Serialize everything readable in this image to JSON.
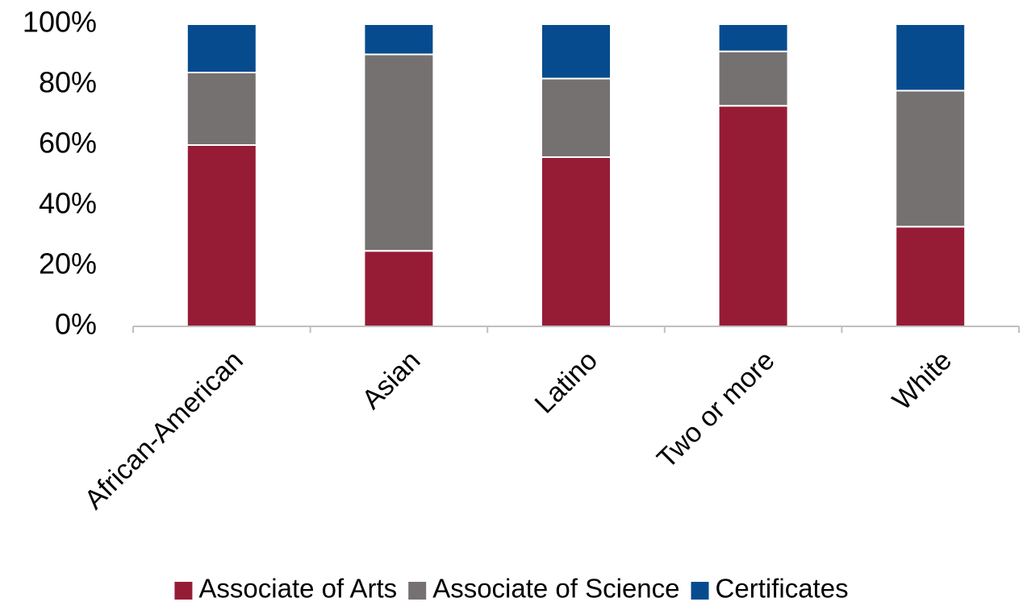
{
  "chart_data": {
    "type": "stacked_bar",
    "categories": [
      "African-American",
      "Asian",
      "Latino",
      "Two or more",
      "White"
    ],
    "series": [
      {
        "name": "Associate of Arts",
        "color": "#961c36",
        "values": [
          60,
          25,
          56,
          73,
          33
        ]
      },
      {
        "name": "Associate of Science",
        "color": "#767171",
        "values": [
          24,
          65,
          26,
          18,
          45
        ]
      },
      {
        "name": "Certificates",
        "color": "#074b8f",
        "values": [
          16,
          10,
          18,
          9,
          22
        ]
      }
    ],
    "ylim": [
      0,
      100
    ],
    "yticks": [
      {
        "value": 0,
        "label": "0%"
      },
      {
        "value": 20,
        "label": "20%"
      },
      {
        "value": 40,
        "label": "40%"
      },
      {
        "value": 60,
        "label": "60%"
      },
      {
        "value": 80,
        "label": "80%"
      },
      {
        "value": 100,
        "label": "100%"
      }
    ],
    "grid": false,
    "legend": "bottom"
  }
}
